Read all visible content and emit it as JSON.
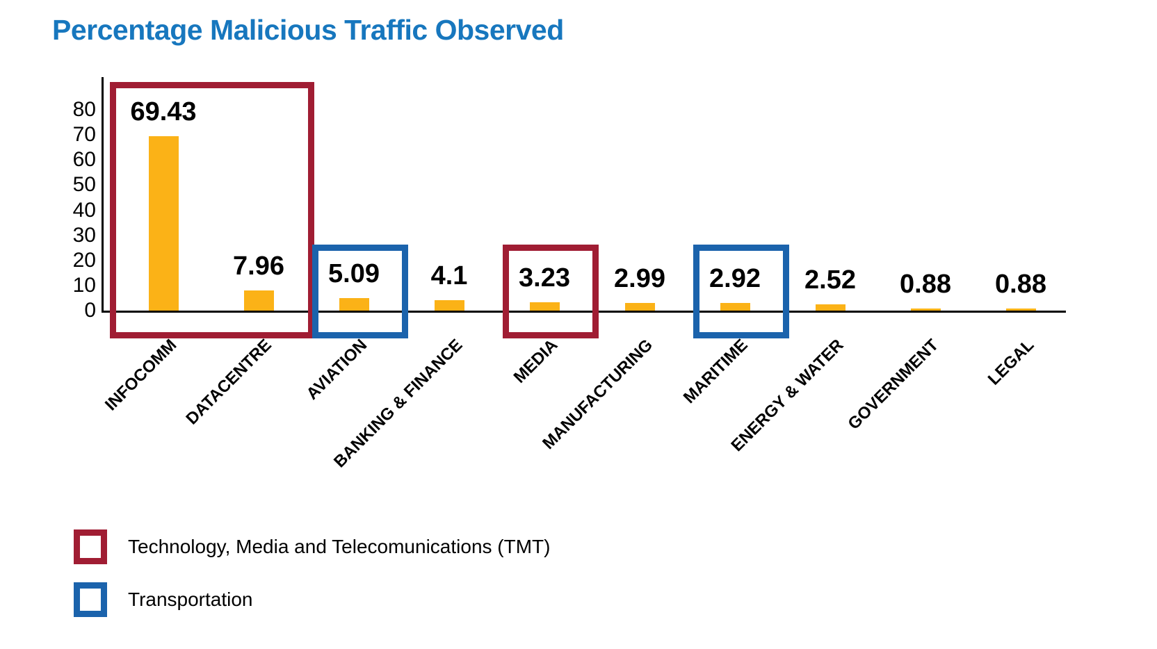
{
  "title": {
    "text": "Percentage Malicious Traffic Observed",
    "color": "#1777BE"
  },
  "chart_data": {
    "type": "bar",
    "title": "Percentage Malicious Traffic Observed",
    "categories": [
      "INFOCOMM",
      "DATACENTRE",
      "AVIATION",
      "BANKING & FINANCE",
      "MEDIA",
      "MANUFACTURING",
      "MARITIME",
      "ENERGY & WATER",
      "GOVERNMENT",
      "LEGAL"
    ],
    "values": [
      69.43,
      7.96,
      5.09,
      4.1,
      3.23,
      2.99,
      2.92,
      2.52,
      0.88,
      0.88
    ],
    "value_labels": [
      "69.43",
      "7.96",
      "5.09",
      "4.1",
      "3.23",
      "2.99",
      "2.92",
      "2.52",
      "0.88",
      "0.88"
    ],
    "xlabel": "",
    "ylabel": "",
    "ylim": [
      0,
      80
    ],
    "yticks": [
      0,
      10,
      20,
      30,
      40,
      50,
      60,
      70,
      80
    ],
    "grid": false,
    "bar_color": "#FBB217",
    "axis_color": "#000000",
    "legend_position": "bottom-left",
    "highlight_boxes": [
      {
        "group": "TMT",
        "color": "#A01D33",
        "from": "INFOCOMM",
        "to": "DATACENTRE",
        "full_height": true
      },
      {
        "group": "Transportation",
        "color": "#1B63AC",
        "from": "AVIATION",
        "to": "AVIATION",
        "full_height": false
      },
      {
        "group": "TMT",
        "color": "#A01D33",
        "from": "MEDIA",
        "to": "MEDIA",
        "full_height": false
      },
      {
        "group": "Transportation",
        "color": "#1B63AC",
        "from": "MARITIME",
        "to": "MARITIME",
        "full_height": false
      }
    ]
  },
  "legend": {
    "items": [
      {
        "label": "Technology, Media and Telecomunications (TMT)",
        "color": "#A01D33"
      },
      {
        "label": "Transportation",
        "color": "#1B63AC"
      }
    ]
  }
}
